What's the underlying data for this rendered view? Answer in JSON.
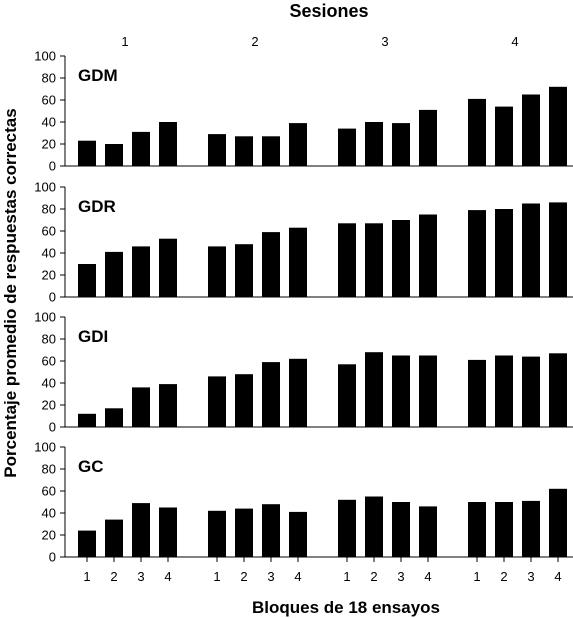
{
  "chart_data": {
    "type": "bar",
    "title": "Sesiones",
    "xlabel": "Bloques de 18 ensayos",
    "ylabel": "Porcentaje promedio de respuestas correctas",
    "sessions": [
      "1",
      "2",
      "3",
      "4"
    ],
    "categories": [
      "1",
      "2",
      "3",
      "4"
    ],
    "ylim": [
      0,
      100
    ],
    "yticks": [
      "0",
      "20",
      "40",
      "60",
      "80",
      "100"
    ],
    "bar_color": "#000000",
    "grid": false,
    "groups": [
      {
        "name": "GDM",
        "values": [
          [
            23,
            20,
            31,
            40
          ],
          [
            29,
            27,
            27,
            39
          ],
          [
            34,
            40,
            39,
            51
          ],
          [
            61,
            54,
            65,
            72
          ]
        ]
      },
      {
        "name": "GDR",
        "values": [
          [
            30,
            41,
            46,
            53
          ],
          [
            46,
            48,
            59,
            63
          ],
          [
            67,
            67,
            70,
            75
          ],
          [
            79,
            80,
            85,
            86
          ]
        ]
      },
      {
        "name": "GDI",
        "values": [
          [
            12,
            17,
            36,
            39
          ],
          [
            46,
            48,
            59,
            62
          ],
          [
            57,
            68,
            65,
            65
          ],
          [
            61,
            65,
            64,
            67
          ]
        ]
      },
      {
        "name": "GC",
        "values": [
          [
            24,
            34,
            49,
            45
          ],
          [
            42,
            44,
            48,
            41
          ],
          [
            52,
            55,
            50,
            46
          ],
          [
            50,
            50,
            51,
            62
          ]
        ]
      }
    ]
  }
}
